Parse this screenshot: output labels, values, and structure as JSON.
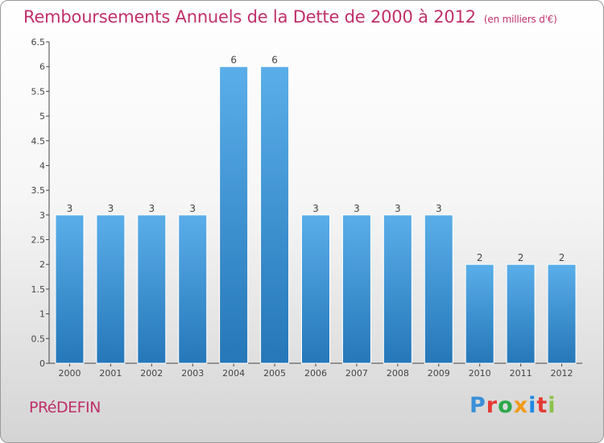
{
  "header": {
    "title": "Remboursements Annuels de la Dette de 2000 à 2012",
    "unit": "(en milliers d'€)"
  },
  "footer": {
    "commune": "PRéDEFIN",
    "logo_letters": [
      "P",
      "r",
      "o",
      "x",
      "i",
      "t",
      "i"
    ]
  },
  "colors": {
    "title": "#c0306a",
    "bar_top": "#5aaee9",
    "bar_bottom": "#2577b8"
  },
  "chart_data": {
    "type": "bar",
    "categories": [
      "2000",
      "2001",
      "2002",
      "2003",
      "2004",
      "2005",
      "2006",
      "2007",
      "2008",
      "2009",
      "2010",
      "2011",
      "2012"
    ],
    "values": [
      3,
      3,
      3,
      3,
      6,
      6,
      3,
      3,
      3,
      3,
      2,
      2,
      2
    ],
    "ylim": [
      0,
      6.5
    ],
    "yticks": [
      "0",
      "0.5",
      "1",
      "1.5",
      "2",
      "2.5",
      "3",
      "3.5",
      "4",
      "4.5",
      "5",
      "5.5",
      "6",
      "6.5"
    ],
    "grid": false,
    "data_labels": true
  }
}
